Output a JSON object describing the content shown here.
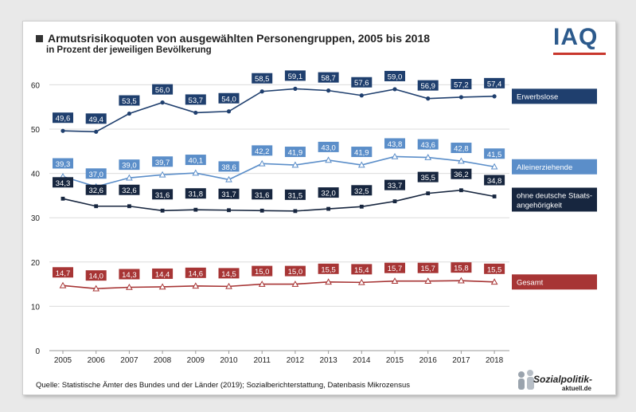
{
  "header": {
    "title": "Armutsrisikoquoten von ausgewählten Personengruppen, 2005 bis 2018",
    "subtitle": "in Prozent der jeweiligen Bevölkerung",
    "logo": "IAQ"
  },
  "footer": {
    "source": "Quelle: Statistische Ämter des Bundes und der Länder (2019); Sozialberichterstattung, Datenbasis Mikrozensus",
    "brand": "Sozialpolitik-",
    "brand_sub": "aktuell.de"
  },
  "chart_data": {
    "type": "line",
    "x": [
      2005,
      2006,
      2007,
      2008,
      2009,
      2010,
      2011,
      2012,
      2013,
      2014,
      2015,
      2016,
      2017,
      2018
    ],
    "ylim": [
      0,
      60
    ],
    "yticks": [
      0,
      10,
      20,
      30,
      40,
      50,
      60
    ],
    "grid": true,
    "legend_placement": "right",
    "series": [
      {
        "name": "Erwerbslose",
        "color": "#1f3f6e",
        "marker": "circle",
        "values": [
          49.6,
          49.4,
          53.5,
          56.0,
          53.7,
          54.0,
          58.5,
          59.1,
          58.7,
          57.6,
          59.0,
          56.9,
          57.2,
          57.4
        ],
        "labels": [
          "49,6",
          "49,4",
          "53,5",
          "56,0",
          "53,7",
          "54,0",
          "58,5",
          "59,1",
          "58,7",
          "57,6",
          "59,0",
          "56,9",
          "57,2",
          "57,4"
        ]
      },
      {
        "name": "Alleinerziehende",
        "color": "#5b8ec9",
        "marker": "triangle",
        "values": [
          39.3,
          37.0,
          39.0,
          39.7,
          40.1,
          38.6,
          42.2,
          41.9,
          43.0,
          41.9,
          43.8,
          43.6,
          42.8,
          41.5
        ],
        "labels": [
          "39,3",
          "37,0",
          "39,0",
          "39,7",
          "40,1",
          "38,6",
          "42,2",
          "41,9",
          "43,0",
          "41,9",
          "43,8",
          "43,6",
          "42,8",
          "41,5"
        ]
      },
      {
        "name": "ohne deutsche Staatsangehörigkeit",
        "legend_lines": [
          "ohne deutsche Staats-",
          "angehörigkeit"
        ],
        "color": "#17263f",
        "marker": "square",
        "values": [
          34.3,
          32.6,
          32.6,
          31.6,
          31.8,
          31.7,
          31.6,
          31.5,
          32.0,
          32.5,
          33.7,
          35.5,
          36.2,
          34.8
        ],
        "labels": [
          "34,3",
          "32,6",
          "32,6",
          "31,6",
          "31,8",
          "31,7",
          "31,6",
          "31,5",
          "32,0",
          "32,5",
          "33,7",
          "35,5",
          "36,2",
          "34,8"
        ]
      },
      {
        "name": "Gesamt",
        "color": "#a73535",
        "marker": "triangle",
        "values": [
          14.7,
          14.0,
          14.3,
          14.4,
          14.6,
          14.5,
          15.0,
          15.0,
          15.5,
          15.4,
          15.7,
          15.7,
          15.8,
          15.5
        ],
        "labels": [
          "14,7",
          "14,0",
          "14,3",
          "14,4",
          "14,6",
          "14,5",
          "15,0",
          "15,0",
          "15,5",
          "15,4",
          "15,7",
          "15,7",
          "15,8",
          "15,5"
        ]
      }
    ]
  }
}
